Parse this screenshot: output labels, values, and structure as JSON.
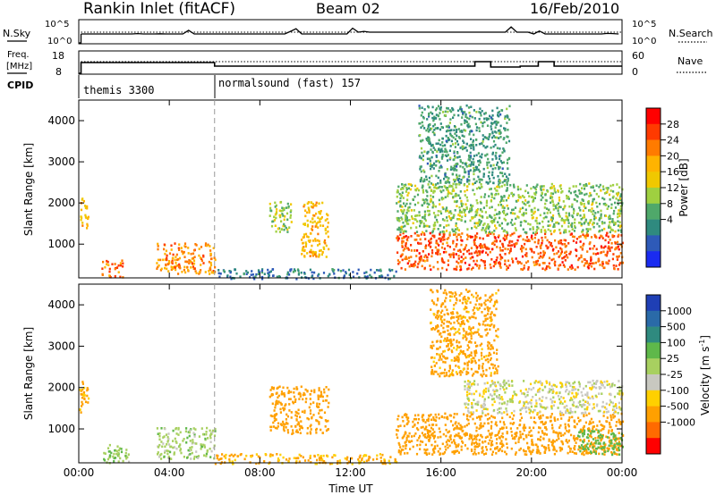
{
  "header": {
    "title": "Rankin Inlet (fitACF)",
    "beam": "Beam 02",
    "date": "16/Feb/2010"
  },
  "status_panels": {
    "nsky_label": "N.Sky",
    "nsearch_label": "N.Search",
    "freq_label_line1": "Freq.",
    "freq_label_line2": "[MHz]",
    "nave_label": "Nave",
    "cpid_label": "CPID",
    "noise_left_ticks": [
      "10^5",
      "10^0"
    ],
    "noise_right_ticks": [
      "10^5",
      "10^0"
    ],
    "freq_ticks": [
      "18",
      "8"
    ],
    "nave_ticks": [
      "60",
      "0"
    ],
    "cpid_segments": [
      {
        "label": "themis 3300",
        "start_hour": 0,
        "end_hour": 6
      },
      {
        "label": "normalsound (fast) 157",
        "start_hour": 6,
        "end_hour": 24
      }
    ]
  },
  "colorbars": {
    "power": {
      "title": "Power [dB]",
      "ticks": [
        "28",
        "24",
        "20",
        "16",
        "12",
        "8",
        "4"
      ],
      "colors": [
        "#ff0000",
        "#ff3a00",
        "#ff7b00",
        "#ffb300",
        "#f0c800",
        "#9fd040",
        "#4fa86a",
        "#2f8a7f",
        "#2e5ab8",
        "#1a2bf0"
      ]
    },
    "velocity": {
      "title_text": "Velocity [m s",
      "title_sup": "-1",
      "title_end": "]",
      "ticks": [
        "1000",
        "500",
        "100",
        "25",
        "-25",
        "-100",
        "-500",
        "-1000"
      ],
      "colors": [
        "#1f3fb5",
        "#2a6aa8",
        "#2f8a7f",
        "#5fb84a",
        "#a8d060",
        "#c8c8c0",
        "#ffd000",
        "#ffa000",
        "#ff6a00",
        "#ff0000"
      ]
    }
  },
  "chart_data": [
    {
      "type": "heatmap",
      "name": "power",
      "xlabel": "",
      "ylabel": "Slant Range [km]",
      "xlim": [
        0,
        24
      ],
      "ylim": [
        180,
        4500
      ],
      "yticks": [
        1000,
        2000,
        3000,
        4000
      ],
      "xticks_hours": [
        0,
        4,
        8,
        12,
        16,
        20,
        24
      ],
      "regions": [
        {
          "t0": 0.0,
          "t1": 0.4,
          "r0": 1400,
          "r1": 2200,
          "value": 20
        },
        {
          "t0": 1.0,
          "t1": 2.0,
          "r0": 200,
          "r1": 650,
          "value": 26
        },
        {
          "t0": 3.4,
          "t1": 6.0,
          "r0": 300,
          "r1": 1050,
          "value": 24
        },
        {
          "t0": 6.0,
          "t1": 14.0,
          "r0": 180,
          "r1": 420,
          "value": 6
        },
        {
          "t0": 8.4,
          "t1": 9.4,
          "r0": 1300,
          "r1": 2050,
          "value": 14
        },
        {
          "t0": 9.8,
          "t1": 11.0,
          "r0": 700,
          "r1": 2050,
          "value": 20
        },
        {
          "t0": 14.0,
          "t1": 24.0,
          "r0": 400,
          "r1": 1300,
          "value": 27
        },
        {
          "t0": 14.0,
          "t1": 24.0,
          "r0": 1300,
          "r1": 2500,
          "value": 13
        },
        {
          "t0": 15.0,
          "t1": 19.0,
          "r0": 2500,
          "r1": 4400,
          "value": 9
        }
      ]
    },
    {
      "type": "heatmap",
      "name": "velocity",
      "xlabel": "Time UT",
      "ylabel": "Slant Range [km]",
      "xlim": [
        0,
        24
      ],
      "ylim": [
        180,
        4500
      ],
      "yticks": [
        1000,
        2000,
        3000,
        4000
      ],
      "xticks": [
        "00:00",
        "04:00",
        "08:00",
        "12:00",
        "16:00",
        "20:00",
        "00:00"
      ],
      "xticks_hours": [
        0,
        4,
        8,
        12,
        16,
        20,
        24
      ],
      "regions": [
        {
          "t0": 0.0,
          "t1": 0.4,
          "r0": 1400,
          "r1": 2200,
          "value": -150
        },
        {
          "t0": 1.0,
          "t1": 2.2,
          "r0": 200,
          "r1": 650,
          "value": 80
        },
        {
          "t0": 3.4,
          "t1": 6.0,
          "r0": 300,
          "r1": 1050,
          "value": 60
        },
        {
          "t0": 6.0,
          "t1": 14.0,
          "r0": 180,
          "r1": 420,
          "value": -120
        },
        {
          "t0": 8.4,
          "t1": 11.0,
          "r0": 900,
          "r1": 2050,
          "value": -200
        },
        {
          "t0": 14.0,
          "t1": 24.0,
          "r0": 400,
          "r1": 1400,
          "value": -400
        },
        {
          "t0": 17.0,
          "t1": 24.0,
          "r0": 1400,
          "r1": 2200,
          "value": 0
        },
        {
          "t0": 22.0,
          "t1": 24.0,
          "r0": 400,
          "r1": 1000,
          "value": 250
        },
        {
          "t0": 15.5,
          "t1": 18.5,
          "r0": 2300,
          "r1": 4400,
          "value": -150
        }
      ]
    }
  ]
}
